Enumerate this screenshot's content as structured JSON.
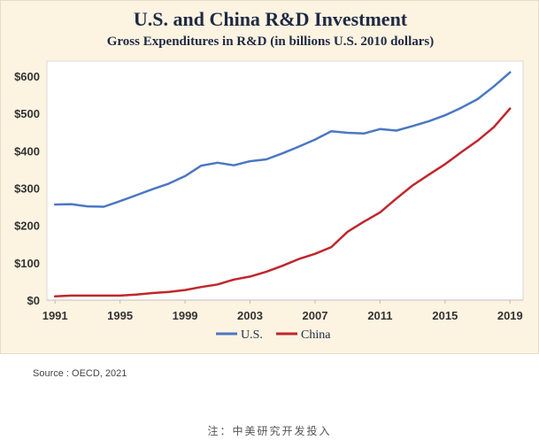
{
  "chart_data": {
    "type": "line",
    "title": "U.S. and China R&D Investment",
    "subtitle": "Gross Expenditures in R&D (in billions U.S. 2010 dollars)",
    "x": [
      1991,
      1992,
      1993,
      1994,
      1995,
      1996,
      1997,
      1998,
      1999,
      2000,
      2001,
      2002,
      2003,
      2004,
      2005,
      2006,
      2007,
      2008,
      2009,
      2010,
      2011,
      2012,
      2013,
      2014,
      2015,
      2016,
      2017,
      2018,
      2019
    ],
    "series": [
      {
        "name": "U.S.",
        "color": "#4a77c4",
        "values": [
          256,
          257,
          251,
          250,
          265,
          281,
          297,
          312,
          332,
          360,
          368,
          361,
          372,
          377,
          393,
          411,
          430,
          452,
          448,
          446,
          458,
          454,
          466,
          479,
          495,
          515,
          538,
          572,
          610
        ]
      },
      {
        "name": "China",
        "color": "#c0262c",
        "values": [
          10,
          12,
          12,
          12,
          12,
          15,
          19,
          22,
          27,
          35,
          42,
          55,
          63,
          76,
          92,
          110,
          124,
          142,
          183,
          210,
          235,
          272,
          307,
          336,
          364,
          396,
          427,
          463,
          513
        ]
      }
    ],
    "xticks": [
      "1991",
      "1995",
      "1999",
      "2003",
      "2007",
      "2011",
      "2015",
      "2019"
    ],
    "xtick_values": [
      1991,
      1995,
      1999,
      2003,
      2007,
      2011,
      2015,
      2019
    ],
    "yticks": [
      "$0",
      "$100",
      "$200",
      "$300",
      "$400",
      "$500",
      "$600"
    ],
    "ytick_values": [
      0,
      100,
      200,
      300,
      400,
      500,
      600
    ],
    "ylim": [
      0,
      640
    ],
    "xlim": [
      1990.5,
      2019.8
    ],
    "grid": false,
    "legend": "bottom-center"
  },
  "source": "Source : OECD, 2021",
  "note": "注：中美研究开发投入"
}
